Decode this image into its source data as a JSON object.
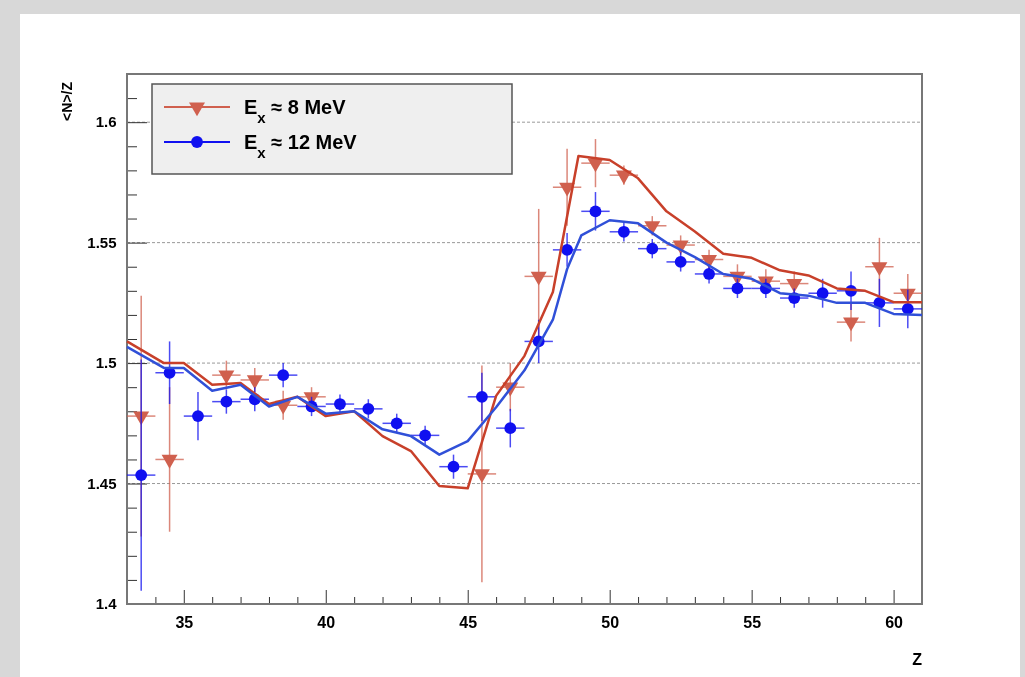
{
  "chart_data": {
    "type": "scatter",
    "xlabel": "Z",
    "ylabel": "<N>/Z",
    "xlim": [
      33,
      61
    ],
    "ylim": [
      1.4,
      1.62
    ],
    "xticks": [
      {
        "value": 33,
        "label": null
      },
      {
        "value": 34,
        "label": null
      },
      35,
      {
        "value": 36,
        "label": null
      },
      {
        "value": 37,
        "label": null
      },
      {
        "value": 38,
        "label": null
      },
      {
        "value": 39,
        "label": null
      },
      40,
      {
        "value": 41,
        "label": null
      },
      {
        "value": 42,
        "label": null
      },
      {
        "value": 43,
        "label": null
      },
      {
        "value": 44,
        "label": null
      },
      45,
      {
        "value": 46,
        "label": null
      },
      {
        "value": 47,
        "label": null
      },
      {
        "value": 48,
        "label": null
      },
      {
        "value": 49,
        "label": null
      },
      50,
      {
        "value": 51,
        "label": null
      },
      {
        "value": 52,
        "label": null
      },
      {
        "value": 53,
        "label": null
      },
      {
        "value": 54,
        "label": null
      },
      55,
      {
        "value": 56,
        "label": null
      },
      {
        "value": 57,
        "label": null
      },
      {
        "value": 58,
        "label": null
      },
      {
        "value": 59,
        "label": null
      },
      60,
      {
        "value": 61,
        "label": null
      }
    ],
    "yticks": [
      1.4,
      {
        "value": 1.41,
        "label": null
      },
      {
        "value": 1.42,
        "label": null
      },
      {
        "value": 1.43,
        "label": null
      },
      {
        "value": 1.44,
        "label": null
      },
      1.45,
      {
        "value": 1.46,
        "label": null
      },
      {
        "value": 1.47,
        "label": null
      },
      {
        "value": 1.48,
        "label": null
      },
      {
        "value": 1.49,
        "label": null
      },
      1.5,
      {
        "value": 1.51,
        "label": null
      },
      {
        "value": 1.52,
        "label": null
      },
      {
        "value": 1.53,
        "label": null
      },
      {
        "value": 1.54,
        "label": null
      },
      1.55,
      {
        "value": 1.56,
        "label": null
      },
      {
        "value": 1.57,
        "label": null
      },
      {
        "value": 1.58,
        "label": null
      },
      {
        "value": 1.59,
        "label": null
      },
      1.6,
      {
        "value": 1.61,
        "label": null
      },
      {
        "value": 1.62,
        "label": null
      }
    ],
    "grid": "y",
    "legend": "top left",
    "x": [
      33.5,
      34.5,
      35.5,
      36.5,
      37.5,
      38.5,
      39.5,
      40.5,
      41.5,
      42.5,
      43.5,
      44.5,
      45.5,
      46.5,
      47.5,
      48.5,
      49.5,
      50.5,
      51.5,
      52.5,
      53.5,
      54.5,
      55.5,
      56.5,
      57.5,
      58.5,
      59.5,
      60.5
    ],
    "series": [
      {
        "name": "E$_{x}$ ≈ 8 MeV",
        "marker": "triangle",
        "color": "#d0604e",
        "values": [
          1.478,
          1.46,
          null,
          1.495,
          1.493,
          1.4825,
          1.486,
          null,
          null,
          null,
          null,
          null,
          1.454,
          1.49,
          1.536,
          1.573,
          1.583,
          1.578,
          1.557,
          1.549,
          1.543,
          1.536,
          1.534,
          1.533,
          null,
          1.517,
          1.54,
          1.529
        ],
        "errors": [
          0.05,
          0.03,
          null,
          0.006,
          0.005,
          0.006,
          0.004,
          null,
          null,
          null,
          null,
          null,
          0.045,
          0.01,
          0.028,
          0.016,
          0.01,
          0.004,
          0.004,
          0.004,
          0.004,
          0.005,
          0.005,
          0.005,
          null,
          0.008,
          0.012,
          0.008
        ],
        "xerrors": [
          0.5,
          0.5,
          null,
          0.5,
          0.5,
          0.5,
          0.5,
          null,
          null,
          null,
          null,
          null,
          0.5,
          0.5,
          0.5,
          0.5,
          0.5,
          0.5,
          0.5,
          0.5,
          0.5,
          0.5,
          0.5,
          0.5,
          null,
          0.5,
          0.5,
          0.5
        ]
      },
      {
        "name": "E$_{x}$ ≈ 12 MeV",
        "marker": "circle",
        "color": "#1010f0",
        "values": [
          1.4535,
          1.496,
          1.478,
          1.484,
          1.485,
          1.495,
          1.482,
          1.483,
          1.481,
          1.475,
          1.47,
          1.457,
          1.486,
          1.473,
          1.509,
          1.547,
          1.563,
          1.5545,
          1.5475,
          1.542,
          1.537,
          1.531,
          1.531,
          1.527,
          1.529,
          1.53,
          1.525,
          1.5225
        ],
        "errors": [
          0.048,
          0.013,
          0.01,
          0.005,
          0.005,
          0.005,
          0.004,
          0.004,
          0.004,
          0.004,
          0.004,
          0.005,
          0.01,
          0.008,
          0.009,
          0.007,
          0.008,
          0.004,
          0.004,
          0.004,
          0.004,
          0.004,
          0.004,
          0.004,
          0.006,
          0.008,
          0.01,
          0.008
        ],
        "xerrors": [
          0.5,
          0.5,
          0.5,
          0.5,
          0.5,
          0.5,
          0.5,
          0.5,
          0.5,
          0.5,
          0.5,
          0.5,
          0.5,
          0.5,
          0.5,
          0.5,
          0.5,
          0.5,
          0.5,
          0.5,
          0.5,
          0.5,
          0.5,
          0.5,
          0.5,
          0.5,
          0.5,
          0.5
        ]
      },
      {
        "type": "line",
        "color": "#c8402a",
        "x": [
          33,
          34.3,
          35,
          36,
          37,
          38,
          39,
          40,
          41,
          42,
          43,
          44,
          45,
          46,
          47,
          48,
          48.9,
          50,
          51,
          52,
          53,
          54,
          55,
          56,
          57,
          58,
          59,
          60,
          61
        ],
        "values": [
          1.509,
          1.5,
          1.5,
          1.491,
          1.4917,
          1.483,
          1.486,
          1.478,
          1.48,
          1.4697,
          1.4635,
          1.449,
          1.448,
          1.4864,
          1.503,
          1.5295,
          1.586,
          1.5843,
          1.5767,
          1.563,
          1.5546,
          1.5454,
          1.5437,
          1.5385,
          1.5364,
          1.531,
          1.53,
          1.5253,
          1.5253
        ]
      },
      {
        "type": "line",
        "color": "#3050d8",
        "x": [
          33,
          34.3,
          35,
          36,
          37,
          38,
          39,
          40,
          41,
          42,
          43,
          44,
          45,
          46,
          47,
          48,
          48.5,
          49,
          50,
          51,
          52,
          53,
          54,
          55,
          56,
          57,
          58,
          59,
          60,
          61
        ],
        "values": [
          1.5067,
          1.498,
          1.498,
          1.4885,
          1.491,
          1.482,
          1.486,
          1.479,
          1.48,
          1.4725,
          1.4697,
          1.462,
          1.4676,
          1.4817,
          1.497,
          1.518,
          1.539,
          1.553,
          1.5593,
          1.558,
          1.55,
          1.544,
          1.537,
          1.535,
          1.529,
          1.528,
          1.525,
          1.525,
          1.5204,
          1.52
        ]
      }
    ]
  }
}
